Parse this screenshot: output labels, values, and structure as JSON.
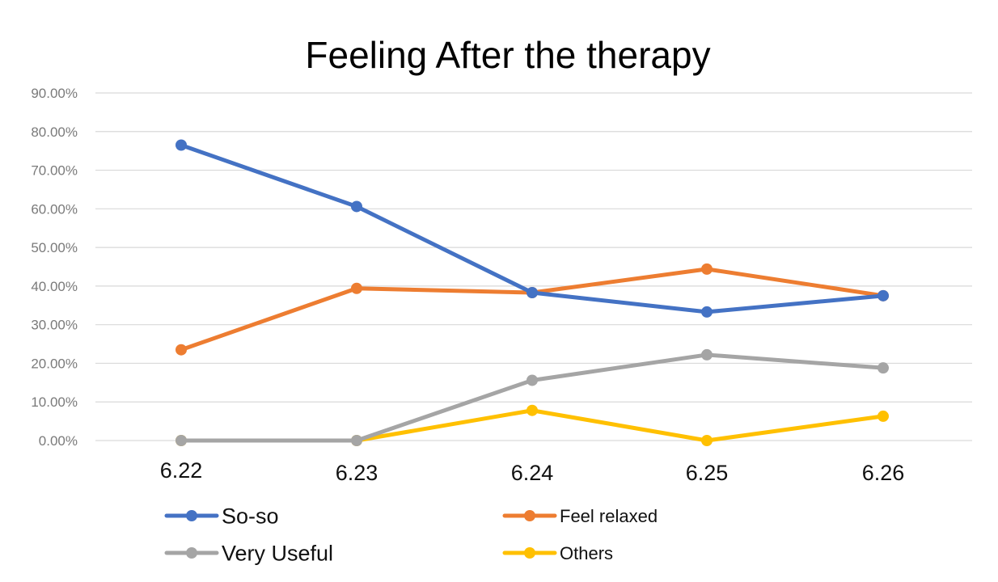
{
  "chart_data": {
    "type": "line",
    "title": "Feeling After the therapy",
    "xlabel": "",
    "ylabel": "",
    "categories": [
      "6.22",
      "6.23",
      "6.24",
      "6.25",
      "6.26"
    ],
    "ylim": [
      0,
      90
    ],
    "yticks": [
      0,
      10,
      20,
      30,
      40,
      50,
      60,
      70,
      80,
      90
    ],
    "ytick_labels": [
      "0.00%",
      "10.00%",
      "20.00%",
      "30.00%",
      "40.00%",
      "50.00%",
      "60.00%",
      "70.00%",
      "80.00%",
      "90.00%"
    ],
    "grid": true,
    "legend_position": "bottom",
    "series": [
      {
        "name": "So-so",
        "color": "#4472c4",
        "values": [
          76.5,
          60.6,
          38.3,
          33.3,
          37.5
        ]
      },
      {
        "name": "Feel relaxed",
        "color": "#ed7d31",
        "values": [
          23.5,
          39.4,
          38.3,
          44.4,
          37.5
        ]
      },
      {
        "name": "Very Useful",
        "color": "#a5a5a5",
        "values": [
          0,
          0,
          15.6,
          22.2,
          18.8
        ]
      },
      {
        "name": "Others",
        "color": "#ffc000",
        "values": [
          0,
          0,
          7.8,
          0,
          6.3
        ]
      }
    ]
  }
}
